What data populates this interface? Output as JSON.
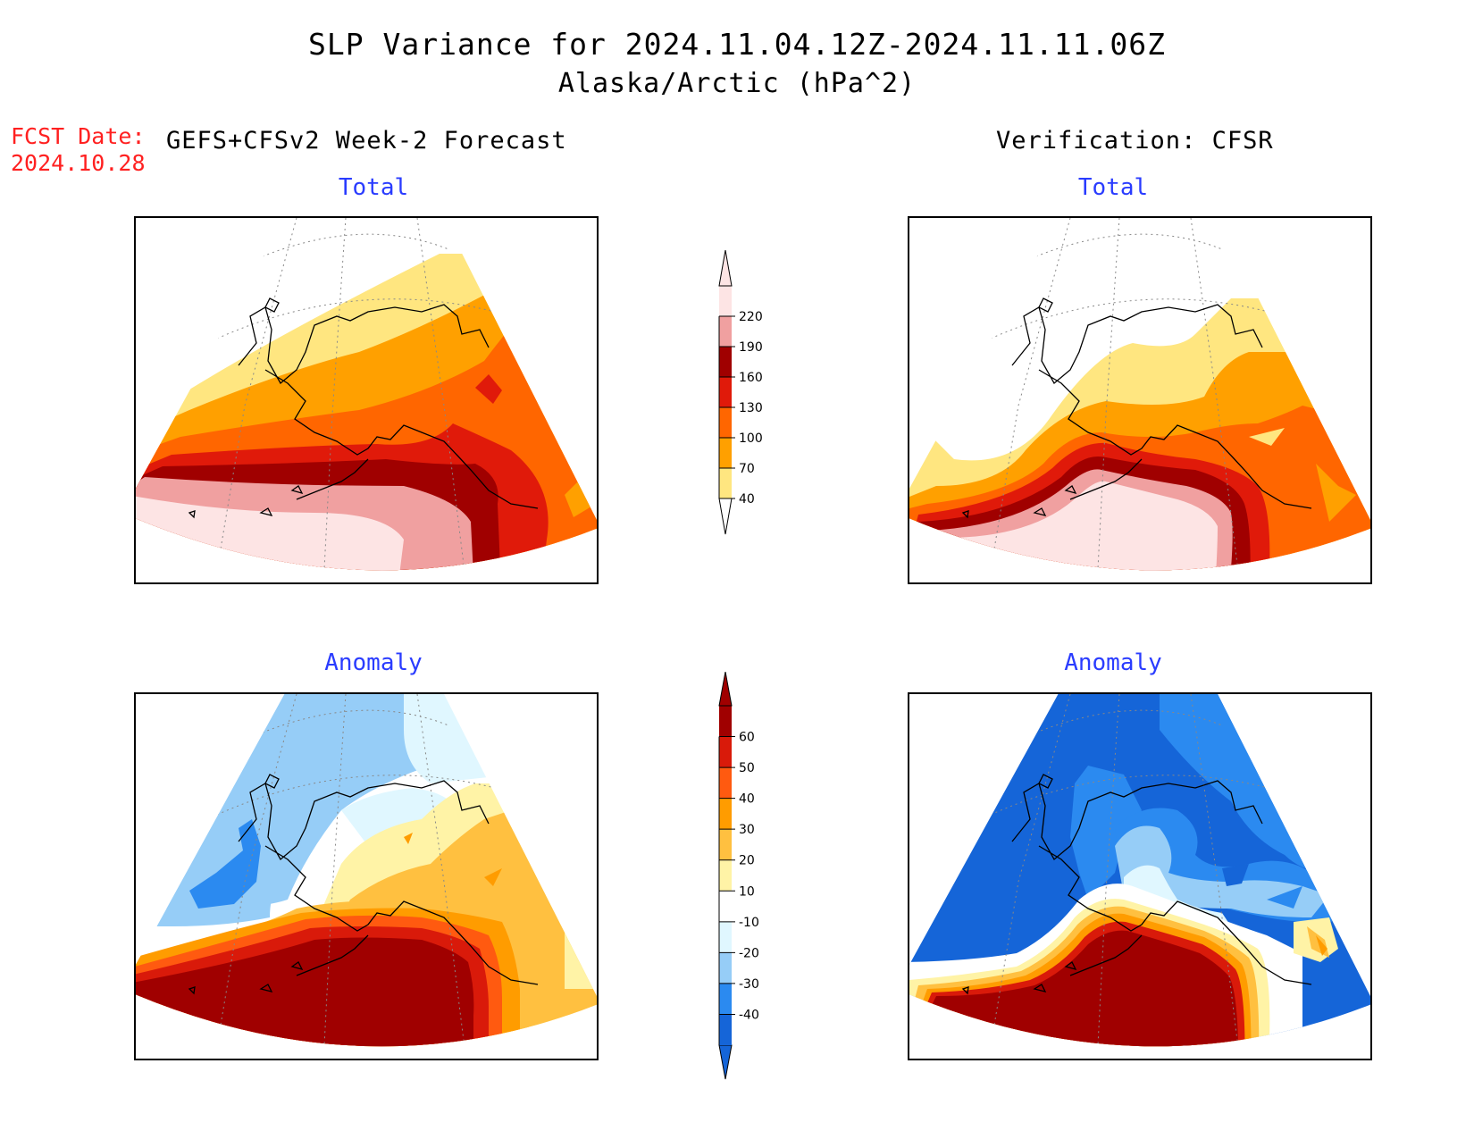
{
  "header": {
    "title": "SLP Variance for 2024.11.04.12Z-2024.11.11.06Z",
    "subtitle": "Alaska/Arctic (hPa^2)",
    "fcst_label": "FCST Date:",
    "fcst_date": "2024.10.28",
    "left_heading": "GEFS+CFSv2 Week-2 Forecast",
    "right_heading": "Verification: CFSR"
  },
  "panels": {
    "forecast_total_title": "Total",
    "verification_total_title": "Total",
    "forecast_anomaly_title": "Anomaly",
    "verification_anomaly_title": "Anomaly"
  },
  "total_colorbar": {
    "labels": [
      "40",
      "70",
      "100",
      "130",
      "160",
      "190",
      "220"
    ],
    "colors": [
      "#ffe680",
      "#ffa000",
      "#ff6600",
      "#e01a0a",
      "#a00000",
      "#f0a0a0",
      "#fde4e4"
    ],
    "below_color": "#ffffff"
  },
  "anomaly_colorbar": {
    "labels": [
      "-40",
      "-30",
      "-20",
      "-10",
      "10",
      "20",
      "30",
      "40",
      "50",
      "60"
    ],
    "colors": [
      "#1565d8",
      "#2b8af0",
      "#96cdf7",
      "#e0f7ff",
      "#ffffff",
      "#fff3a6",
      "#ffc040",
      "#ff9c00",
      "#ff5a10",
      "#d91a0a",
      "#a00000"
    ],
    "below_color": "#1565d8"
  }
}
